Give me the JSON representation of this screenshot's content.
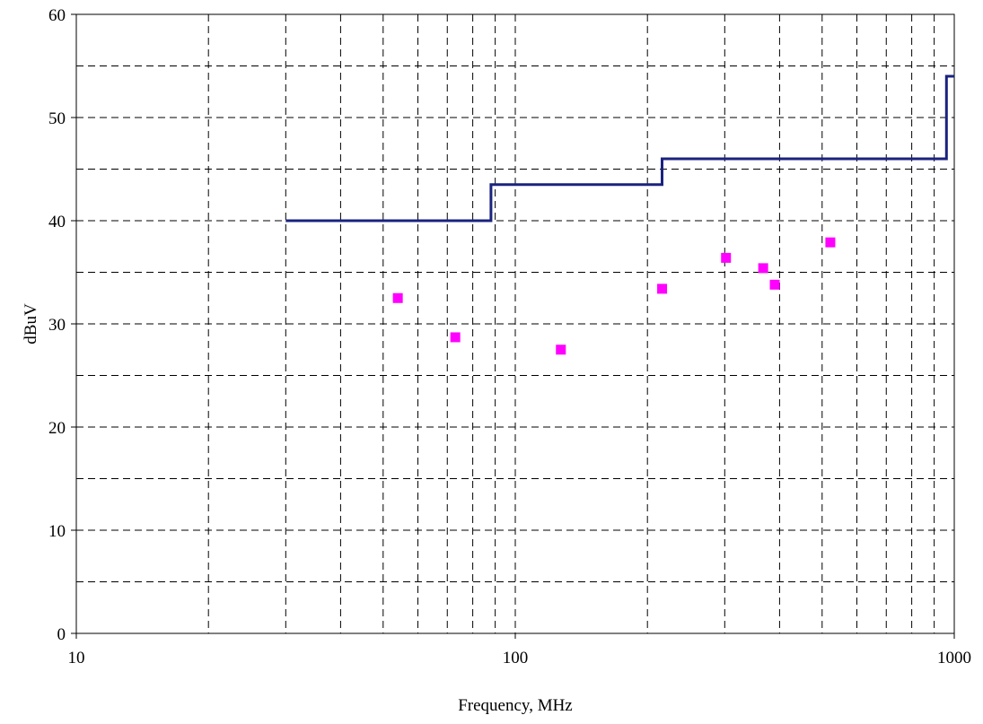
{
  "chart_data": {
    "type": "scatter",
    "title": "",
    "xlabel": "Frequency, MHz",
    "ylabel": "dBuV",
    "xscale": "log",
    "xlim": [
      10,
      1000
    ],
    "ylim": [
      0,
      60
    ],
    "x_ticks": [
      10,
      100,
      1000
    ],
    "x_tick_labels": [
      "10",
      "100",
      "1000"
    ],
    "y_ticks": [
      0,
      10,
      20,
      30,
      40,
      50,
      60
    ],
    "y_tick_labels": [
      "0",
      "10",
      "20",
      "30",
      "40",
      "50",
      "60"
    ],
    "y_minor_grid": [
      5,
      15,
      25,
      35,
      45,
      55
    ],
    "grid": true,
    "grid_style": "dashed",
    "legend": "none",
    "limit_line": {
      "color": "#1a237e",
      "x": [
        30,
        88,
        88,
        216,
        216,
        960,
        960,
        1000
      ],
      "y": [
        40,
        40,
        43.5,
        43.5,
        46,
        46,
        54,
        54
      ]
    },
    "measurements": {
      "color": "#ff00ff",
      "marker": "square",
      "x": [
        54,
        73,
        127,
        216,
        302,
        367,
        390,
        522
      ],
      "y": [
        32.5,
        28.7,
        27.5,
        33.4,
        36.4,
        35.4,
        33.8,
        37.9
      ]
    }
  }
}
